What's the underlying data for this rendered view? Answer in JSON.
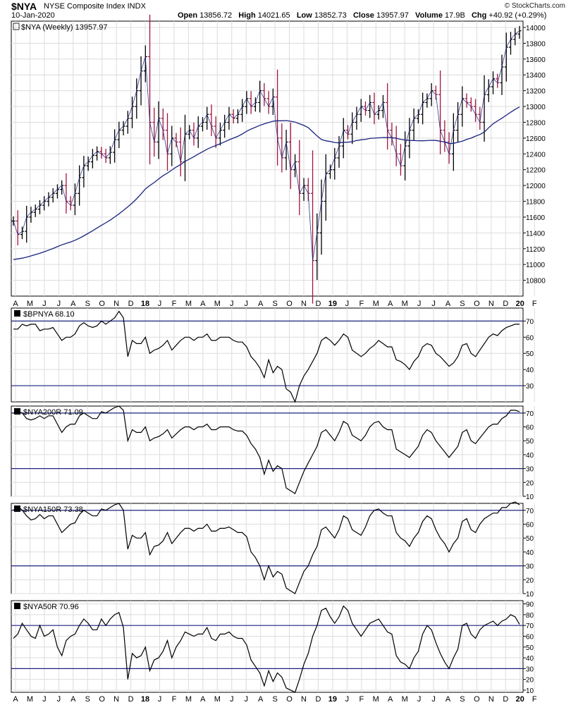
{
  "header": {
    "symbol": "$NYA",
    "name": "NYSE Composite Index",
    "exchange": "INDX",
    "date": "10-Jan-2020",
    "copyright": "© StockCharts.com",
    "quote": {
      "open_label": "Open",
      "open": "13856.72",
      "high_label": "High",
      "high": "14021.65",
      "low_label": "Low",
      "low": "13852.73",
      "close_label": "Close",
      "close": "13957.97",
      "volume_label": "Volume",
      "volume": "17.9B",
      "chg_label": "Chg",
      "chg": "+40.92 (+0.29%)"
    }
  },
  "x_axis_labels": [
    "A",
    "M",
    "J",
    "J",
    "A",
    "S",
    "O",
    "N",
    "D",
    "18",
    "J",
    "F",
    "M",
    "A",
    "M",
    "J",
    "J",
    "A",
    "S",
    "O",
    "N",
    "D",
    "19",
    "J",
    "F",
    "M",
    "A",
    "M",
    "J",
    "J",
    "A",
    "S",
    "O",
    "N",
    "D",
    "20",
    "F"
  ],
  "colors": {
    "up": "#000000",
    "down": "#a0153e",
    "ma": "#1a237e",
    "line": "#000000",
    "grid": "#dcdcdc",
    "hline": "#1a237e"
  },
  "chart_data": [
    {
      "type": "ohlc",
      "legend": "$NYA (Weekly) 13957.97",
      "yticks": [
        10800,
        11000,
        11200,
        11400,
        11600,
        11800,
        12000,
        12200,
        12400,
        12600,
        12800,
        13000,
        13200,
        13400,
        13600,
        13800,
        14000
      ],
      "ylim": [
        10600,
        14080
      ],
      "closes": [
        11550,
        11380,
        11420,
        11600,
        11660,
        11700,
        11750,
        11800,
        11850,
        11900,
        11950,
        12000,
        11800,
        11750,
        11900,
        12100,
        12250,
        12300,
        12380,
        12430,
        12400,
        12350,
        12420,
        12580,
        12700,
        12750,
        12850,
        13000,
        13200,
        13450,
        13630,
        12800,
        12550,
        12850,
        12700,
        12400,
        12600,
        12550,
        12300,
        12650,
        12700,
        12600,
        12750,
        12800,
        12900,
        12750,
        12600,
        12700,
        12800,
        12900,
        12850,
        12900,
        13000,
        13100,
        13000,
        13050,
        13200,
        13100,
        13000,
        13120,
        12600,
        12350,
        12550,
        12200,
        12300,
        11900,
        12000,
        11900,
        11050,
        11400,
        11800,
        12150,
        12200,
        12350,
        12500,
        12700,
        12650,
        12800,
        12900,
        13000,
        12950,
        13050,
        12900,
        12950,
        13050,
        12700,
        12600,
        12400,
        12250,
        12500,
        12700,
        12850,
        12900,
        13050,
        13100,
        13200,
        13150,
        12700,
        12550,
        12400,
        12700,
        12900,
        13100,
        13050,
        13000,
        12900,
        12800,
        13150,
        13250,
        13350,
        13300,
        13500,
        13750,
        13850,
        13917,
        13958
      ],
      "ma_period": 40
    },
    {
      "type": "line",
      "label": "$BPNYA 68.10",
      "yticks": [
        30,
        40,
        50,
        60,
        70
      ],
      "ylim": [
        20,
        78
      ],
      "hlines": [
        30,
        70
      ],
      "values": [
        65,
        65,
        68,
        67,
        68,
        68,
        64,
        65,
        65,
        66,
        62,
        58,
        60,
        60,
        62,
        67,
        69,
        67,
        66,
        67,
        70,
        68,
        70,
        72,
        76,
        72,
        48,
        58,
        56,
        56,
        60,
        50,
        52,
        53,
        55,
        58,
        52,
        55,
        58,
        60,
        60,
        58,
        60,
        60,
        62,
        58,
        58,
        60,
        60,
        60,
        58,
        57,
        57,
        54,
        48,
        45,
        41,
        35,
        46,
        38,
        42,
        40,
        28,
        26,
        20,
        30,
        36,
        40,
        45,
        50,
        58,
        60,
        58,
        55,
        58,
        62,
        60,
        52,
        50,
        48,
        50,
        53,
        55,
        58,
        56,
        54,
        54,
        46,
        45,
        43,
        40,
        45,
        48,
        54,
        56,
        55,
        50,
        48,
        45,
        42,
        44,
        48,
        55,
        56,
        50,
        48,
        52,
        56,
        60,
        62,
        61,
        64,
        66,
        67,
        68,
        68
      ]
    },
    {
      "type": "line",
      "label": "$NYA200R 71.09",
      "yticks": [
        10,
        20,
        30,
        40,
        50,
        60,
        70
      ],
      "ylim": [
        10,
        75
      ],
      "hlines": [
        30,
        70
      ],
      "values": [
        70,
        71,
        70,
        66,
        65,
        66,
        68,
        66,
        68,
        68,
        62,
        56,
        60,
        62,
        62,
        68,
        70,
        68,
        66,
        66,
        71,
        70,
        72,
        74,
        75,
        72,
        50,
        58,
        56,
        56,
        60,
        50,
        52,
        53,
        55,
        58,
        52,
        55,
        58,
        60,
        60,
        58,
        60,
        60,
        62,
        58,
        58,
        60,
        60,
        60,
        58,
        57,
        57,
        54,
        48,
        44,
        38,
        26,
        36,
        28,
        32,
        30,
        16,
        14,
        12,
        20,
        28,
        34,
        40,
        46,
        56,
        58,
        54,
        50,
        56,
        64,
        62,
        54,
        52,
        50,
        54,
        60,
        63,
        64,
        60,
        58,
        58,
        44,
        42,
        40,
        38,
        42,
        46,
        54,
        58,
        56,
        50,
        46,
        42,
        38,
        42,
        46,
        56,
        58,
        50,
        48,
        52,
        56,
        60,
        62,
        62,
        66,
        68,
        72,
        72,
        71
      ]
    },
    {
      "type": "line",
      "label": "$NYA150R 73.38",
      "yticks": [
        10,
        20,
        30,
        40,
        50,
        60,
        70
      ],
      "ylim": [
        10,
        75
      ],
      "hlines": [
        30,
        70
      ],
      "values": [
        70,
        73,
        70,
        66,
        63,
        64,
        67,
        64,
        66,
        66,
        60,
        54,
        57,
        60,
        61,
        67,
        70,
        68,
        66,
        66,
        71,
        70,
        72,
        74,
        75,
        70,
        42,
        52,
        50,
        50,
        54,
        38,
        44,
        45,
        48,
        54,
        46,
        50,
        54,
        57,
        57,
        55,
        57,
        57,
        60,
        55,
        55,
        57,
        57,
        58,
        56,
        54,
        54,
        51,
        40,
        36,
        30,
        20,
        30,
        22,
        26,
        24,
        14,
        12,
        10,
        18,
        26,
        30,
        38,
        44,
        56,
        58,
        54,
        50,
        56,
        66,
        64,
        56,
        54,
        52,
        58,
        66,
        70,
        71,
        68,
        66,
        66,
        54,
        50,
        48,
        44,
        50,
        54,
        62,
        66,
        64,
        56,
        50,
        46,
        40,
        46,
        50,
        62,
        64,
        56,
        54,
        60,
        64,
        66,
        68,
        68,
        72,
        72,
        75,
        76,
        74
      ]
    },
    {
      "type": "line",
      "label": "$NYA50R 70.96",
      "yticks": [
        10,
        20,
        30,
        40,
        50,
        60,
        70,
        80,
        90
      ],
      "ylim": [
        8,
        93
      ],
      "hlines": [
        30,
        70
      ],
      "values": [
        58,
        62,
        72,
        66,
        60,
        58,
        70,
        60,
        62,
        66,
        50,
        42,
        56,
        60,
        62,
        70,
        76,
        72,
        66,
        66,
        76,
        70,
        76,
        80,
        82,
        68,
        20,
        44,
        40,
        42,
        50,
        28,
        38,
        40,
        46,
        56,
        40,
        50,
        56,
        64,
        62,
        60,
        62,
        62,
        68,
        58,
        56,
        62,
        62,
        64,
        60,
        58,
        58,
        52,
        38,
        32,
        26,
        14,
        28,
        18,
        26,
        22,
        12,
        10,
        8,
        20,
        34,
        44,
        60,
        70,
        84,
        86,
        78,
        72,
        78,
        88,
        84,
        72,
        66,
        60,
        66,
        72,
        74,
        76,
        70,
        64,
        62,
        42,
        36,
        34,
        30,
        40,
        46,
        62,
        70,
        66,
        54,
        44,
        36,
        30,
        40,
        48,
        70,
        72,
        62,
        58,
        66,
        70,
        72,
        74,
        70,
        74,
        76,
        80,
        78,
        71
      ]
    }
  ]
}
